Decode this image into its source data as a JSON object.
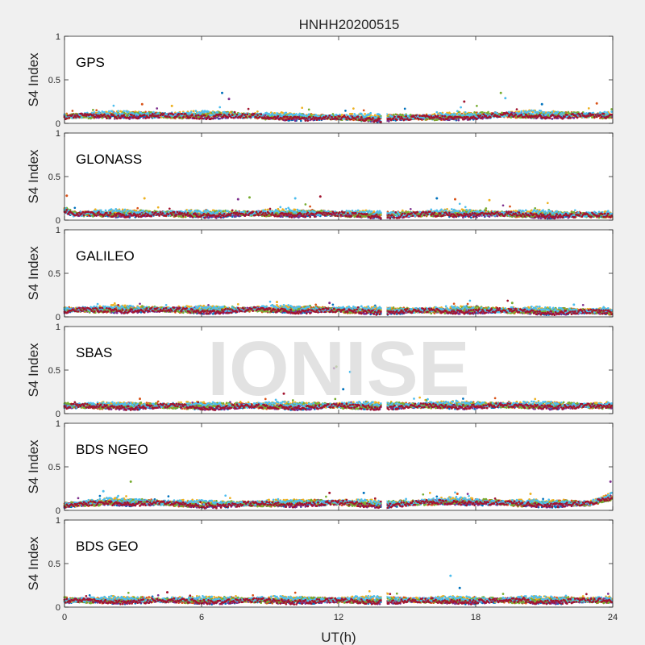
{
  "chart_data": {
    "type": "scatter",
    "title": "HNHH20200515",
    "xlabel": "UT(h)",
    "ylabel": "S4 Index",
    "xlim": [
      0,
      24
    ],
    "ylim": [
      0,
      1
    ],
    "xticks": [
      "0",
      "6",
      "12",
      "18",
      "24"
    ],
    "yticks": [
      "0",
      "0.5",
      "1"
    ],
    "data_gap_hours": [
      13.9,
      14.1
    ],
    "series_colors": [
      "#0072BD",
      "#D95319",
      "#EDB120",
      "#7E2F8E",
      "#77AC30",
      "#4DBEEE",
      "#A2142F"
    ],
    "panels": [
      {
        "label": "GPS",
        "profile": [
          [
            0,
            0.08
          ],
          [
            1,
            0.09
          ],
          [
            3,
            0.1
          ],
          [
            5,
            0.09
          ],
          [
            7,
            0.1
          ],
          [
            9,
            0.08
          ],
          [
            12,
            0.07
          ],
          [
            13.9,
            0.06
          ],
          [
            14.1,
            0.07
          ],
          [
            16,
            0.07
          ],
          [
            19,
            0.1
          ],
          [
            21,
            0.1
          ],
          [
            24,
            0.09
          ]
        ],
        "spikes": [
          [
            6.9,
            0.35
          ],
          [
            3.4,
            0.22
          ],
          [
            4.7,
            0.2
          ],
          [
            7.2,
            0.28
          ],
          [
            19.1,
            0.35
          ],
          [
            19.3,
            0.29
          ],
          [
            17.5,
            0.25
          ],
          [
            20.9,
            0.22
          ],
          [
            23.3,
            0.23
          ]
        ]
      },
      {
        "label": "GLONASS",
        "profile": [
          [
            0,
            0.12
          ],
          [
            0.4,
            0.07
          ],
          [
            3,
            0.08
          ],
          [
            6,
            0.07
          ],
          [
            9,
            0.08
          ],
          [
            11,
            0.08
          ],
          [
            13.9,
            0.06
          ],
          [
            14.1,
            0.06
          ],
          [
            17,
            0.08
          ],
          [
            20,
            0.07
          ],
          [
            24,
            0.06
          ]
        ],
        "spikes": [
          [
            0.1,
            0.28
          ],
          [
            3.5,
            0.25
          ],
          [
            7.6,
            0.24
          ],
          [
            8.1,
            0.26
          ],
          [
            10.1,
            0.25
          ],
          [
            11.2,
            0.27
          ],
          [
            16.3,
            0.25
          ],
          [
            17.1,
            0.24
          ],
          [
            18.6,
            0.23
          ]
        ]
      },
      {
        "label": "GALILEO",
        "profile": [
          [
            0,
            0.08
          ],
          [
            3,
            0.09
          ],
          [
            6,
            0.08
          ],
          [
            9,
            0.09
          ],
          [
            12,
            0.08
          ],
          [
            13.9,
            0.07
          ],
          [
            14.1,
            0.07
          ],
          [
            18,
            0.08
          ],
          [
            21,
            0.07
          ],
          [
            24,
            0.06
          ]
        ],
        "spikes": [
          [
            9.3,
            0.17
          ],
          [
            11.6,
            0.16
          ],
          [
            19.6,
            0.16
          ],
          [
            22.3,
            0.14
          ]
        ]
      },
      {
        "label": "SBAS",
        "profile": [
          [
            0,
            0.09
          ],
          [
            6,
            0.09
          ],
          [
            12,
            0.09
          ],
          [
            13.9,
            0.09
          ],
          [
            14.1,
            0.09
          ],
          [
            18,
            0.1
          ],
          [
            24,
            0.09
          ]
        ],
        "spikes": [
          [
            11.8,
            0.52
          ],
          [
            11.9,
            0.54
          ],
          [
            12.5,
            0.48
          ],
          [
            9.6,
            0.23
          ],
          [
            12.2,
            0.28
          ],
          [
            3.3,
            0.17
          ]
        ]
      },
      {
        "label": "BDS NGEO",
        "profile": [
          [
            0,
            0.06
          ],
          [
            2,
            0.1
          ],
          [
            4,
            0.09
          ],
          [
            6,
            0.07
          ],
          [
            9,
            0.08
          ],
          [
            12,
            0.09
          ],
          [
            13.9,
            0.07
          ],
          [
            14.1,
            0.07
          ],
          [
            17,
            0.11
          ],
          [
            20,
            0.08
          ],
          [
            23,
            0.08
          ],
          [
            24,
            0.16
          ]
        ],
        "spikes": [
          [
            2.9,
            0.33
          ],
          [
            1.7,
            0.22
          ],
          [
            11.6,
            0.2
          ],
          [
            13.1,
            0.2
          ],
          [
            17.2,
            0.19
          ],
          [
            20.4,
            0.19
          ],
          [
            23.9,
            0.33
          ]
        ]
      },
      {
        "label": "BDS GEO",
        "profile": [
          [
            0,
            0.08
          ],
          [
            6,
            0.08
          ],
          [
            12,
            0.08
          ],
          [
            13.9,
            0.08
          ],
          [
            14.1,
            0.08
          ],
          [
            18,
            0.08
          ],
          [
            24,
            0.08
          ]
        ],
        "spikes": [
          [
            16.9,
            0.36
          ],
          [
            4.5,
            0.17
          ],
          [
            17.3,
            0.22
          ]
        ]
      }
    ]
  },
  "watermark": "IONISE"
}
